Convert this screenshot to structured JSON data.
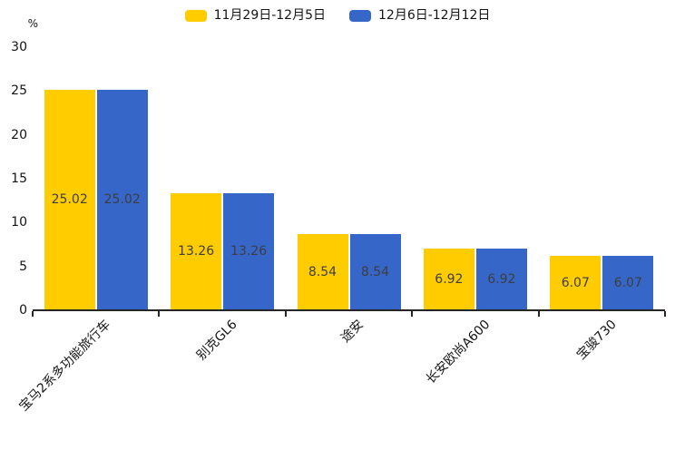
{
  "chart_data": {
    "type": "bar",
    "title": "",
    "ylabel": "%",
    "categories": [
      "宝马2系多功能旅行车",
      "别克GL6",
      "途安",
      "长安欧尚A600",
      "宝骏730"
    ],
    "series": [
      {
        "name": "11月29日-12月5日",
        "color": "#FFCC00",
        "values": [
          25.02,
          13.26,
          8.54,
          6.92,
          6.07
        ]
      },
      {
        "name": "12月6日-12月12日",
        "color": "#3766C9",
        "values": [
          25.02,
          13.26,
          8.54,
          6.92,
          6.07
        ]
      }
    ],
    "value_labels": [
      "25.02",
      "13.26",
      "8.54",
      "6.92",
      "6.07"
    ],
    "ylim": [
      0,
      30
    ],
    "yticks": [
      0,
      5,
      10,
      15,
      20,
      25,
      30
    ],
    "grid": false,
    "legend_position": "top",
    "value_label_color": "#3d3d3d",
    "axis_color": "#262626"
  }
}
